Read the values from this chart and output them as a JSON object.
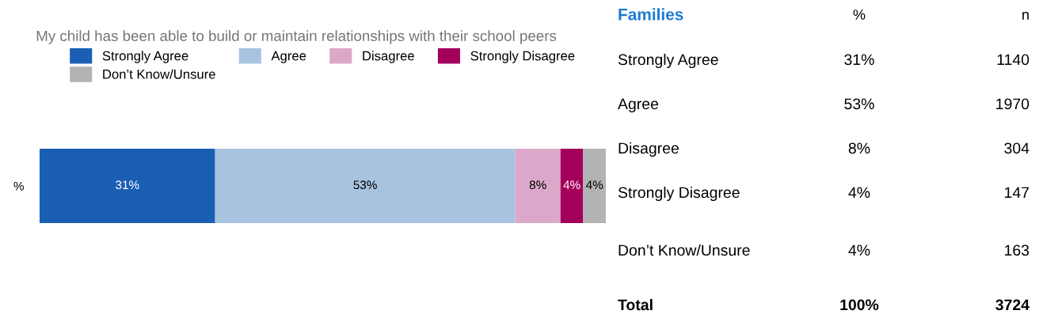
{
  "chart_data": [
    {
      "type": "bar",
      "orientation": "horizontal",
      "stacked": true,
      "title": "My child has been able to build or maintain relationships with their school peers",
      "categories": [
        "%"
      ],
      "series": [
        {
          "name": "Strongly Agree",
          "color": "#1a5fb4",
          "values": [
            31
          ],
          "value_labels": [
            "31%"
          ]
        },
        {
          "name": "Agree",
          "color": "#a7c3e0",
          "values": [
            53
          ],
          "value_labels": [
            "53%"
          ]
        },
        {
          "name": "Disagree",
          "color": "#dca8c9",
          "values": [
            8
          ],
          "value_labels": [
            "8%"
          ]
        },
        {
          "name": "Strongly Disagree",
          "color": "#a3005c",
          "values": [
            4
          ],
          "value_labels": [
            "4%"
          ]
        },
        {
          "name": "Don’t Know/Unsure",
          "color": "#b3b3b3",
          "values": [
            4
          ],
          "value_labels": [
            "4%"
          ]
        }
      ],
      "legend": "top",
      "grid": false
    },
    {
      "type": "other",
      "title": "Families",
      "annotations": [
        "%",
        "n",
        "Strongly Agree",
        "31%",
        "1140",
        "Agree",
        "53%",
        "1970",
        "Disagree",
        "8%",
        "304",
        "Strongly Disagree",
        "4%",
        "147",
        "Don’t Know/Unsure",
        "4%",
        "163",
        "Total",
        "100%",
        "3724"
      ]
    }
  ]
}
